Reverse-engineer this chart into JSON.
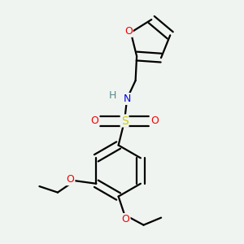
{
  "bg_color": "#f0f4f0",
  "atom_colors": {
    "C": "#000000",
    "H": "#5a8a8a",
    "N": "#0000ee",
    "O": "#ee0000",
    "S": "#cccc00"
  },
  "bond_color": "#000000",
  "bond_width": 1.6,
  "figsize": [
    3.0,
    3.0
  ],
  "dpi": 100,
  "xlim": [
    0.0,
    1.0
  ],
  "ylim": [
    0.0,
    1.0
  ]
}
